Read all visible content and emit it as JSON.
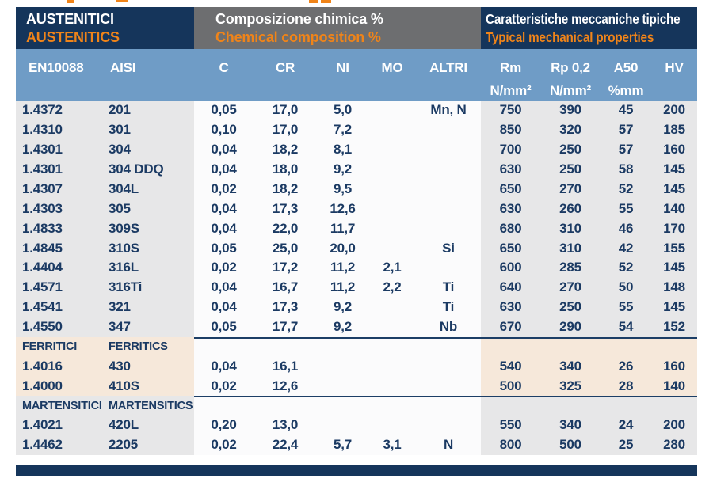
{
  "header_bands": {
    "left": {
      "line1": "AUSTENITICI",
      "line2": "AUSTENITICS"
    },
    "middle": {
      "line1": "Composizione chimica %",
      "line2": "Chemical composition %"
    },
    "right": {
      "line1": "Caratteristiche meccaniche tipiche",
      "line2": "Typical mechanical properties"
    }
  },
  "column_headers": [
    {
      "label": "EN10088"
    },
    {
      "label": "AISI"
    },
    {
      "label": "C"
    },
    {
      "label": "CR"
    },
    {
      "label": "NI"
    },
    {
      "label": "MO"
    },
    {
      "label": "ALTRI"
    },
    {
      "label": "Rm",
      "unit": "N/mm²"
    },
    {
      "label": "Rp 0,2",
      "unit": "N/mm²"
    },
    {
      "label": "A50",
      "unit": "%mm"
    },
    {
      "label": "HV"
    }
  ],
  "colors": {
    "navy": "#15355b",
    "gray_band": "#6d6e70",
    "orange": "#f08419",
    "blue_header": "#6f9cc6",
    "text_navy": "#1b3a63",
    "row_gray": "#e7e7e8",
    "row_peach": "#f6e8da"
  },
  "sections": [
    {
      "css": "austenitics",
      "title_row": null,
      "rows": [
        [
          "1.4372",
          "201",
          "0,05",
          "17,0",
          "5,0",
          "",
          "Mn, N",
          "750",
          "390",
          "45",
          "200"
        ],
        [
          "1.4310",
          "301",
          "0,10",
          "17,0",
          "7,2",
          "",
          "",
          "850",
          "320",
          "57",
          "185"
        ],
        [
          "1.4301",
          "304",
          "0,04",
          "18,2",
          "8,1",
          "",
          "",
          "700",
          "250",
          "57",
          "160"
        ],
        [
          "1.4301",
          "304 DDQ",
          "0,04",
          "18,0",
          "9,2",
          "",
          "",
          "630",
          "250",
          "58",
          "145"
        ],
        [
          "1.4307",
          "304L",
          "0,02",
          "18,2",
          "9,5",
          "",
          "",
          "650",
          "270",
          "52",
          "145"
        ],
        [
          "1.4303",
          "305",
          "0,04",
          "17,3",
          "12,6",
          "",
          "",
          "630",
          "260",
          "55",
          "140"
        ],
        [
          "1.4833",
          "309S",
          "0,04",
          "22,0",
          "11,7",
          "",
          "",
          "680",
          "310",
          "46",
          "170"
        ],
        [
          "1.4845",
          "310S",
          "0,05",
          "25,0",
          "20,0",
          "",
          "Si",
          "650",
          "310",
          "42",
          "155"
        ],
        [
          "1.4404",
          "316L",
          "0,02",
          "17,2",
          "11,2",
          "2,1",
          "",
          "600",
          "285",
          "52",
          "145"
        ],
        [
          "1.4571",
          "316Ti",
          "0,04",
          "16,7",
          "11,2",
          "2,2",
          "Ti",
          "640",
          "270",
          "50",
          "148"
        ],
        [
          "1.4541",
          "321",
          "0,04",
          "17,3",
          "9,2",
          "",
          "Ti",
          "630",
          "250",
          "55",
          "145"
        ],
        [
          "1.4550",
          "347",
          "0,05",
          "17,7",
          "9,2",
          "",
          "Nb",
          "670",
          "290",
          "54",
          "152"
        ]
      ]
    },
    {
      "css": "ferritics",
      "title_row": {
        "it": "FERRITICI",
        "en": "FERRITICS"
      },
      "rows": [
        [
          "1.4016",
          "430",
          "0,04",
          "16,1",
          "",
          "",
          "",
          "540",
          "340",
          "26",
          "160"
        ],
        [
          "1.4000",
          "410S",
          "0,02",
          "12,6",
          "",
          "",
          "",
          "500",
          "325",
          "28",
          "140"
        ]
      ]
    },
    {
      "css": "martensitics",
      "title_row": {
        "it": "MARTENSITICI",
        "en": "MARTENSITICS"
      },
      "rows": [
        [
          "1.4021",
          "420L",
          "0,20",
          "13,0",
          "",
          "",
          "",
          "550",
          "340",
          "24",
          "200"
        ],
        [
          "1.4462",
          "2205",
          "0,02",
          "22,4",
          "5,7",
          "3,1",
          "N",
          "800",
          "500",
          "25",
          "280"
        ]
      ]
    }
  ]
}
